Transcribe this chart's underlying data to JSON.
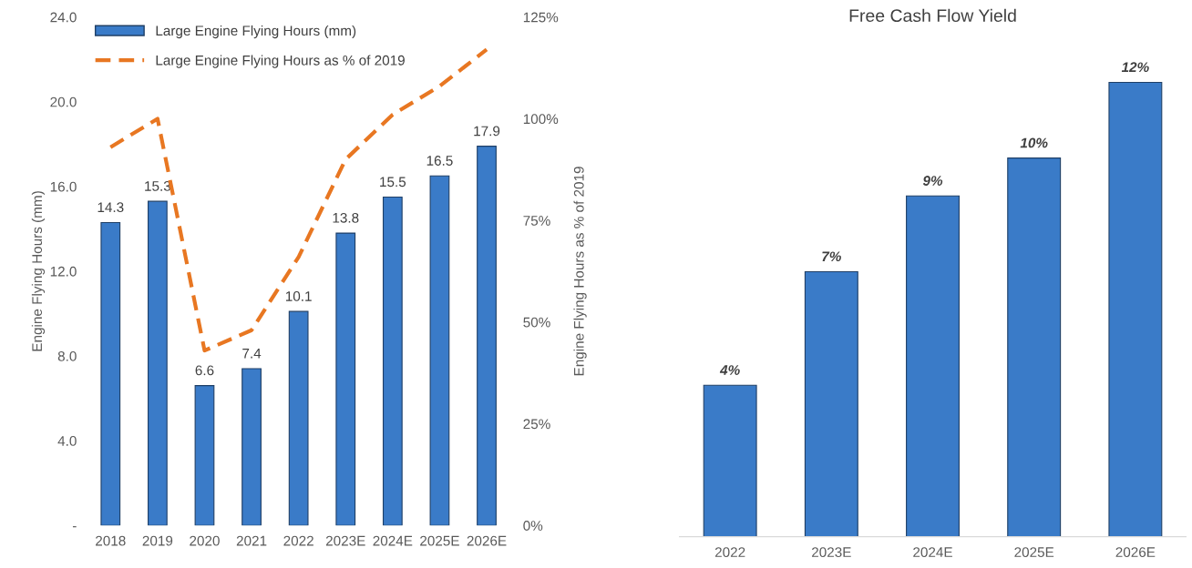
{
  "chart_data": [
    {
      "type": "bar",
      "categories": [
        "2018",
        "2019",
        "2020",
        "2021",
        "2022",
        "2023E",
        "2024E",
        "2025E",
        "2026E"
      ],
      "series": [
        {
          "name": "Large Engine Flying Hours (mm)",
          "color": "#3a7bc8",
          "values": [
            14.3,
            15.3,
            6.6,
            7.4,
            10.1,
            13.8,
            15.5,
            16.5,
            17.9
          ],
          "value_labels": [
            "14.3",
            "15.3",
            "6.6",
            "7.4",
            "10.1",
            "13.8",
            "15.5",
            "16.5",
            "17.9"
          ]
        },
        {
          "name": "Large Engine Flying Hours as % of 2019",
          "type": "line",
          "axis": "y2",
          "color": "#e87722",
          "line_style": "dashed",
          "values": [
            93,
            100,
            43,
            48,
            66,
            90,
            101,
            108,
            117
          ]
        }
      ],
      "ylabel": "Engine Flying Hours (mm)",
      "y2label": "Engine Flying Hours as % of 2019",
      "ylim": [
        0,
        24
      ],
      "yticks": [
        {
          "value": 0,
          "label": "-"
        },
        {
          "value": 4,
          "label": "4.0"
        },
        {
          "value": 8,
          "label": "8.0"
        },
        {
          "value": 12,
          "label": "12.0"
        },
        {
          "value": 16,
          "label": "16.0"
        },
        {
          "value": 20,
          "label": "20.0"
        },
        {
          "value": 24,
          "label": "24.0"
        }
      ],
      "y2lim": [
        0,
        125
      ],
      "y2ticks": [
        {
          "value": 0,
          "label": "0%"
        },
        {
          "value": 25,
          "label": "25%"
        },
        {
          "value": 50,
          "label": "50%"
        },
        {
          "value": 75,
          "label": "75%"
        },
        {
          "value": 100,
          "label": "100%"
        },
        {
          "value": 125,
          "label": "125%"
        }
      ],
      "legend": "top left",
      "grid": false
    },
    {
      "type": "bar",
      "title": "Free Cash Flow Yield",
      "categories": [
        "2022",
        "2023E",
        "2024E",
        "2025E",
        "2026E"
      ],
      "values": [
        4,
        7,
        9,
        10,
        12
      ],
      "color": "#3a7bc8",
      "value_labels": [
        "4%",
        "7%",
        "9%",
        "10%",
        "12%"
      ],
      "tick_labels": "x",
      "grid": false
    }
  ]
}
